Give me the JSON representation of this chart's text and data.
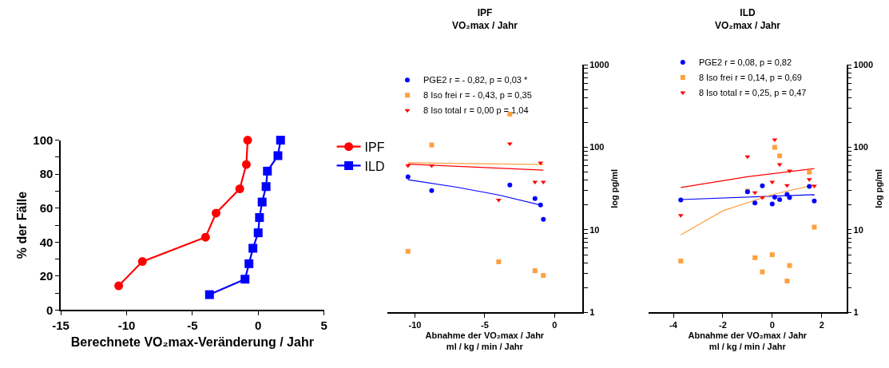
{
  "chart_data": [
    {
      "type": "line",
      "xlabel": "Berechnete VO₂max-Veränderung / Jahr",
      "ylabel": "% der Fälle",
      "xlim": [
        -15,
        5
      ],
      "ylim": [
        0,
        100
      ],
      "xticks": [
        -15,
        -10,
        -5,
        0,
        5
      ],
      "yticks": [
        0,
        {
          "value": 10,
          "label": null
        },
        20,
        {
          "value": 30,
          "label": null
        },
        40,
        {
          "value": 50,
          "label": null
        },
        60,
        {
          "value": 70,
          "label": null
        },
        80,
        {
          "value": 90,
          "label": null
        },
        100
      ],
      "legend": "right",
      "series": [
        {
          "name": "IPF",
          "color": "#ff0000",
          "marker": "circle",
          "x": [
            -10.6,
            -8.8,
            -4.0,
            -3.2,
            -1.4,
            -0.9,
            -0.8
          ],
          "values": [
            14.3,
            28.6,
            42.9,
            57.1,
            71.4,
            85.7,
            100
          ]
        },
        {
          "name": "ILD",
          "color": "#0000ff",
          "marker": "square",
          "x": [
            -3.7,
            -1.0,
            -0.7,
            -0.4,
            0.0,
            0.1,
            0.3,
            0.6,
            0.7,
            1.5,
            1.7
          ],
          "values": [
            9.1,
            18.2,
            27.3,
            36.4,
            45.5,
            54.5,
            63.6,
            72.7,
            81.8,
            90.9,
            100
          ]
        }
      ]
    },
    {
      "type": "scatter",
      "title": "IPF\nVO₂max / Jahr",
      "xlabel": "Abnahme der VO₂max / Jahr\nml / kg / min / Jahr",
      "ylabel": "log pg/ml",
      "xlim": [
        -12,
        2
      ],
      "ylim": [
        1,
        1000
      ],
      "log": "y",
      "xticks": [
        -10,
        -5,
        0
      ],
      "yticks": [
        1,
        {
          "value": 2,
          "label": null
        },
        {
          "value": 3,
          "label": null
        },
        {
          "value": 4,
          "label": null
        },
        {
          "value": 5,
          "label": null
        },
        {
          "value": 6,
          "label": null
        },
        {
          "value": 7,
          "label": null
        },
        {
          "value": 8,
          "label": null
        },
        {
          "value": 9,
          "label": null
        },
        10,
        {
          "value": 20,
          "label": null
        },
        {
          "value": 30,
          "label": null
        },
        {
          "value": 40,
          "label": null
        },
        {
          "value": 50,
          "label": null
        },
        {
          "value": 60,
          "label": null
        },
        {
          "value": 70,
          "label": null
        },
        {
          "value": 80,
          "label": null
        },
        {
          "value": 90,
          "label": null
        },
        100,
        {
          "value": 200,
          "label": null
        },
        {
          "value": 300,
          "label": null
        },
        {
          "value": 400,
          "label": null
        },
        {
          "value": 500,
          "label": null
        },
        {
          "value": 600,
          "label": null
        },
        {
          "value": 700,
          "label": null
        },
        {
          "value": 800,
          "label": null
        },
        {
          "value": 900,
          "label": null
        },
        1000
      ],
      "legend": "top left",
      "series": [
        {
          "name": "PGE2 r = - 0,82, p = 0,03 *",
          "color": "#0000ff",
          "marker": "circle",
          "x": [
            -10.5,
            -8.8,
            -4.0,
            -3.2,
            -1.4,
            -1.0,
            -0.8
          ],
          "values": [
            44,
            30,
            null,
            35,
            24,
            20,
            13.4
          ]
        },
        {
          "name": "8 Iso frei r = - 0,43, p = 0,35",
          "color": "#ffa040",
          "marker": "square",
          "x": [
            -10.5,
            -8.8,
            -4.0,
            -3.2,
            -1.4,
            -1.0,
            -0.8
          ],
          "values": [
            5.5,
            107,
            4.1,
            253,
            3.2,
            null,
            2.8
          ]
        },
        {
          "name": "8 Iso total r = 0,00 p = 1,04",
          "color": "#ff0000",
          "marker": "triangle",
          "x": [
            -10.5,
            -8.8,
            -4.0,
            -3.2,
            -1.4,
            -1.0,
            -0.8
          ],
          "values": [
            60,
            60,
            23,
            111,
            38,
            65,
            38
          ]
        },
        {
          "type": "line",
          "color": "#0000ff",
          "marker": "none",
          "x": [
            -10.5,
            -7,
            -4,
            -1.0
          ],
          "values": [
            40.5,
            32.9,
            26.5,
            20
          ]
        },
        {
          "type": "line",
          "color": "#ffa040",
          "marker": "none",
          "x": [
            -10.5,
            -0.8
          ],
          "values": [
            65,
            62
          ]
        },
        {
          "type": "line",
          "color": "#ff0000",
          "marker": "none",
          "x": [
            -10.5,
            -0.8
          ],
          "values": [
            62.5,
            53
          ]
        }
      ]
    },
    {
      "type": "scatter",
      "title": "ILD\nVO₂max / Jahr",
      "xlabel": "Abnahme der VO₂max / Jahr\nml / kg / min / Jahr",
      "ylabel": "log pg/ml",
      "xlim": [
        -5,
        3
      ],
      "ylim": [
        1,
        1000
      ],
      "log": "y",
      "xticks": [
        -4,
        -2,
        0,
        2
      ],
      "yticks": [
        1,
        {
          "value": 2,
          "label": null
        },
        {
          "value": 3,
          "label": null
        },
        {
          "value": 4,
          "label": null
        },
        {
          "value": 5,
          "label": null
        },
        {
          "value": 6,
          "label": null
        },
        {
          "value": 7,
          "label": null
        },
        {
          "value": 8,
          "label": null
        },
        {
          "value": 9,
          "label": null
        },
        10,
        {
          "value": 20,
          "label": null
        },
        {
          "value": 30,
          "label": null
        },
        {
          "value": 40,
          "label": null
        },
        {
          "value": 50,
          "label": null
        },
        {
          "value": 60,
          "label": null
        },
        {
          "value": 70,
          "label": null
        },
        {
          "value": 80,
          "label": null
        },
        {
          "value": 90,
          "label": null
        },
        100,
        {
          "value": 200,
          "label": null
        },
        {
          "value": 300,
          "label": null
        },
        {
          "value": 400,
          "label": null
        },
        {
          "value": 500,
          "label": null
        },
        {
          "value": 600,
          "label": null
        },
        {
          "value": 700,
          "label": null
        },
        {
          "value": 800,
          "label": null
        },
        {
          "value": 900,
          "label": null
        },
        1000
      ],
      "legend": "top",
      "series": [
        {
          "name": "PGE2 r = 0,08, p = 0,82",
          "color": "#0000ff",
          "marker": "circle",
          "x": [
            -3.7,
            -1.0,
            -0.7,
            -0.4,
            0.0,
            0.1,
            0.3,
            0.6,
            0.7,
            1.5,
            1.7
          ],
          "values": [
            23,
            28.9,
            21.2,
            34.3,
            20.6,
            24.9,
            23.3,
            26.9,
            24.6,
            33.6,
            22.4
          ]
        },
        {
          "name": "8 Iso frei r = 0,14, p = 0,69",
          "color": "#ffa040",
          "marker": "square",
          "x": [
            -3.7,
            -1.0,
            -0.7,
            -0.4,
            0.0,
            0.1,
            0.3,
            0.6,
            0.7,
            1.5,
            1.7
          ],
          "values": [
            4.2,
            29.5,
            4.6,
            3.1,
            5.0,
            100,
            79,
            2.4,
            3.7,
            50,
            10.8
          ]
        },
        {
          "name": "8 Iso total r = 0,25, p = 0,47",
          "color": "#ff0000",
          "marker": "triangle",
          "x": [
            -3.7,
            -1.0,
            -0.7,
            -0.4,
            0.0,
            0.1,
            0.3,
            0.6,
            0.7,
            1.5,
            1.7
          ],
          "values": [
            15,
            77,
            28.3,
            24.7,
            38,
            124,
            62,
            34.6,
            52,
            41,
            34
          ]
        },
        {
          "type": "line",
          "color": "#0000ff",
          "marker": "none",
          "x": [
            -3.7,
            1.7
          ],
          "values": [
            23.3,
            26.7
          ]
        },
        {
          "type": "line",
          "color": "#ffa040",
          "marker": "none",
          "x": [
            -3.7,
            -2,
            0,
            1.7
          ],
          "values": [
            8.7,
            17.0,
            26.8,
            35.1
          ]
        },
        {
          "type": "line",
          "color": "#ff0000",
          "marker": "none",
          "x": [
            -3.7,
            -1.0,
            1.7
          ],
          "values": [
            32.7,
            44,
            55.4
          ]
        }
      ]
    }
  ]
}
